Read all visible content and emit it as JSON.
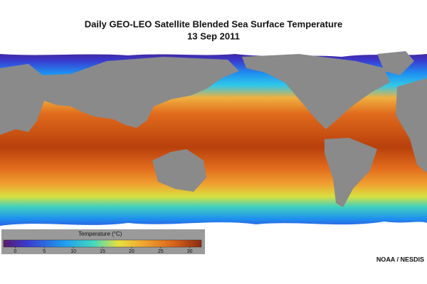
{
  "title": "Daily GEO-LEO Satellite Blended Sea Surface Temperature",
  "date": "13 Sep 2011",
  "colorbar": {
    "label": "Temperature (°C)",
    "lim": [
      -2,
      32
    ],
    "ticks": [
      0,
      5,
      10,
      15,
      20,
      25,
      30
    ]
  },
  "credit": "NOAA / NESDIS"
}
